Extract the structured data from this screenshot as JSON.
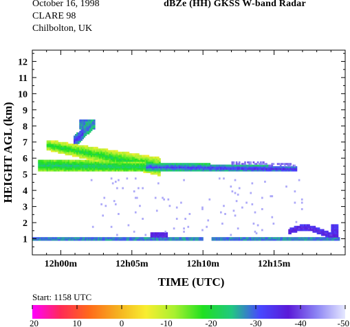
{
  "header": {
    "date": "October 16, 1998",
    "campaign": "CLARE 98",
    "site": "Chilbolton, UK",
    "title": "dBZe (HH)  GKSS  W-band Radar",
    "start": "Start: 1158 UTC"
  },
  "chart_data": {
    "type": "heatmap",
    "title": "dBZe (HH)  GKSS  W-band Radar",
    "xlabel": "TIME (UTC)",
    "ylabel": "HEIGHT AGL (km)",
    "xlim": [
      -2.0,
      20.0
    ],
    "ylim": [
      0.0,
      12.7
    ],
    "x_ticks": [
      {
        "value": 0,
        "label": "12h00m"
      },
      {
        "value": 5,
        "label": "12h05m"
      },
      {
        "value": 10,
        "label": "12h10m"
      },
      {
        "value": 15,
        "label": "12h15m"
      }
    ],
    "y_ticks": [
      1,
      2,
      3,
      4,
      5,
      6,
      7,
      8,
      9,
      10,
      11,
      12
    ],
    "colorbar": {
      "ticks": [
        20,
        10,
        0,
        -10,
        -20,
        -30,
        -40,
        -50
      ],
      "range": [
        20,
        -50
      ],
      "colors": [
        "#ff00ff",
        "#ff2a55",
        "#ff6a1a",
        "#f5b020",
        "#f8ee30",
        "#a8f030",
        "#20e020",
        "#20c880",
        "#4848ff",
        "#5a1ad8",
        "#8c84f4",
        "#e6e8ff"
      ]
    },
    "features": [
      {
        "name": "main layer",
        "time": [
          -1.5,
          16.5
        ],
        "height": [
          5.2,
          5.9
        ],
        "dbz_core": -28,
        "dbz_edge": -38
      },
      {
        "name": "tilted streak",
        "time": [
          -0.8,
          6.5
        ],
        "height": [
          5.7,
          7.2
        ],
        "dbz_core": -24,
        "dbz_edge": -36
      },
      {
        "name": "fall streak top",
        "time": [
          1.0,
          2.4
        ],
        "height": [
          6.9,
          8.4
        ],
        "dbz_core": -27,
        "dbz_edge": -40
      },
      {
        "name": "surface layer",
        "time": [
          -2.0,
          19.5
        ],
        "height": [
          0.9,
          1.15
        ],
        "dbz_core": -30,
        "dbz_edge": -40
      },
      {
        "name": "low cloud",
        "time": [
          16.0,
          19.5
        ],
        "height": [
          1.2,
          1.9
        ],
        "dbz_core": -36,
        "dbz_edge": -45
      }
    ]
  }
}
